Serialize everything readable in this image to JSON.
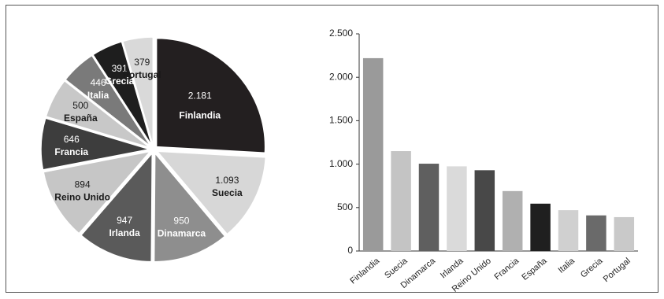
{
  "chart_data": [
    {
      "type": "pie",
      "slices": [
        {
          "name": "Finlandia",
          "value": 2181,
          "value_label": "2.181",
          "color": "#231f20",
          "text_color": "#ffffff"
        },
        {
          "name": "Suecia",
          "value": 1093,
          "value_label": "1.093",
          "color": "#d7d7d7",
          "text_color": "#1a1a1a"
        },
        {
          "name": "Dinamarca",
          "value": 950,
          "value_label": "950",
          "color": "#8e8e8e",
          "text_color": "#ffffff"
        },
        {
          "name": "Irlanda",
          "value": 947,
          "value_label": "947",
          "color": "#5a5a5a",
          "text_color": "#ffffff"
        },
        {
          "name": "Reino Unido",
          "value": 894,
          "value_label": "894",
          "color": "#c6c6c6",
          "text_color": "#1a1a1a"
        },
        {
          "name": "Francia",
          "value": 646,
          "value_label": "646",
          "color": "#3d3d3d",
          "text_color": "#ffffff"
        },
        {
          "name": "España",
          "value": 500,
          "value_label": "500",
          "color": "#c8c8c8",
          "text_color": "#1a1a1a"
        },
        {
          "name": "Italia",
          "value": 446,
          "value_label": "446",
          "color": "#7a7a7a",
          "text_color": "#ffffff"
        },
        {
          "name": "Grecia",
          "value": 391,
          "value_label": "391",
          "color": "#1e1e1e",
          "text_color": "#ffffff"
        },
        {
          "name": "Portugal",
          "value": 379,
          "value_label": "379",
          "color": "#d9d9d9",
          "text_color": "#1a1a1a"
        }
      ]
    },
    {
      "type": "bar",
      "categories": [
        "Finlandia",
        "Suecia",
        "Dinamarca",
        "Irlanda",
        "Reino Unido",
        "Francia",
        "España",
        "Italia",
        "Grecia",
        "Portugal"
      ],
      "values": [
        2220,
        1150,
        1005,
        975,
        930,
        690,
        545,
        470,
        410,
        390
      ],
      "colors": [
        "#9a9a9a",
        "#c4c4c4",
        "#5f5f5f",
        "#dadada",
        "#484848",
        "#b0b0b0",
        "#1f1f1f",
        "#d0d0d0",
        "#6a6a6a",
        "#c9c9c9"
      ],
      "ylim": [
        0,
        2500
      ],
      "yticks": [
        0,
        500,
        1000,
        1500,
        2000,
        2500
      ],
      "ytick_labels": [
        "0",
        "500",
        "1.000",
        "1.500",
        "2.000",
        "2.500"
      ],
      "title": "",
      "xlabel": "",
      "ylabel": "",
      "grid": false
    }
  ]
}
